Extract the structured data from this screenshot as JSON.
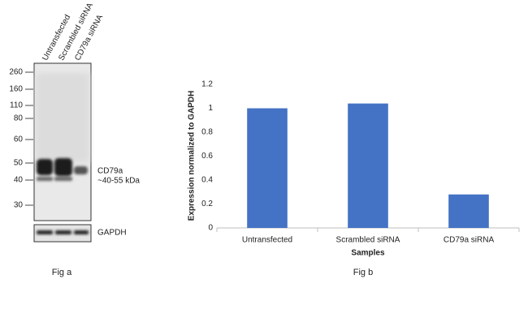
{
  "figure_a": {
    "lanes": [
      "Untransfected",
      "Scrambled siRNA",
      "CD79a siRNA"
    ],
    "markers": [
      260,
      160,
      110,
      80,
      60,
      50,
      40,
      30
    ],
    "band_label": "CD79a",
    "band_size": "~40-55 kDa",
    "loading_control": "GAPDH",
    "caption": "Fig a"
  },
  "chart_data": {
    "type": "bar",
    "caption": "Fig b",
    "categories": [
      "Untransfected",
      "Scrambled siRNA",
      "CD79a siRNA"
    ],
    "values": [
      1.0,
      1.04,
      0.28
    ],
    "color": "#4472c4",
    "ylim": [
      0,
      1.2
    ],
    "yticks": [
      0,
      0.2,
      0.4,
      0.6,
      0.8,
      1,
      1.2
    ],
    "xlabel": "Samples",
    "ylabel": "Expression  normalized to GAPDH",
    "grid": false
  }
}
